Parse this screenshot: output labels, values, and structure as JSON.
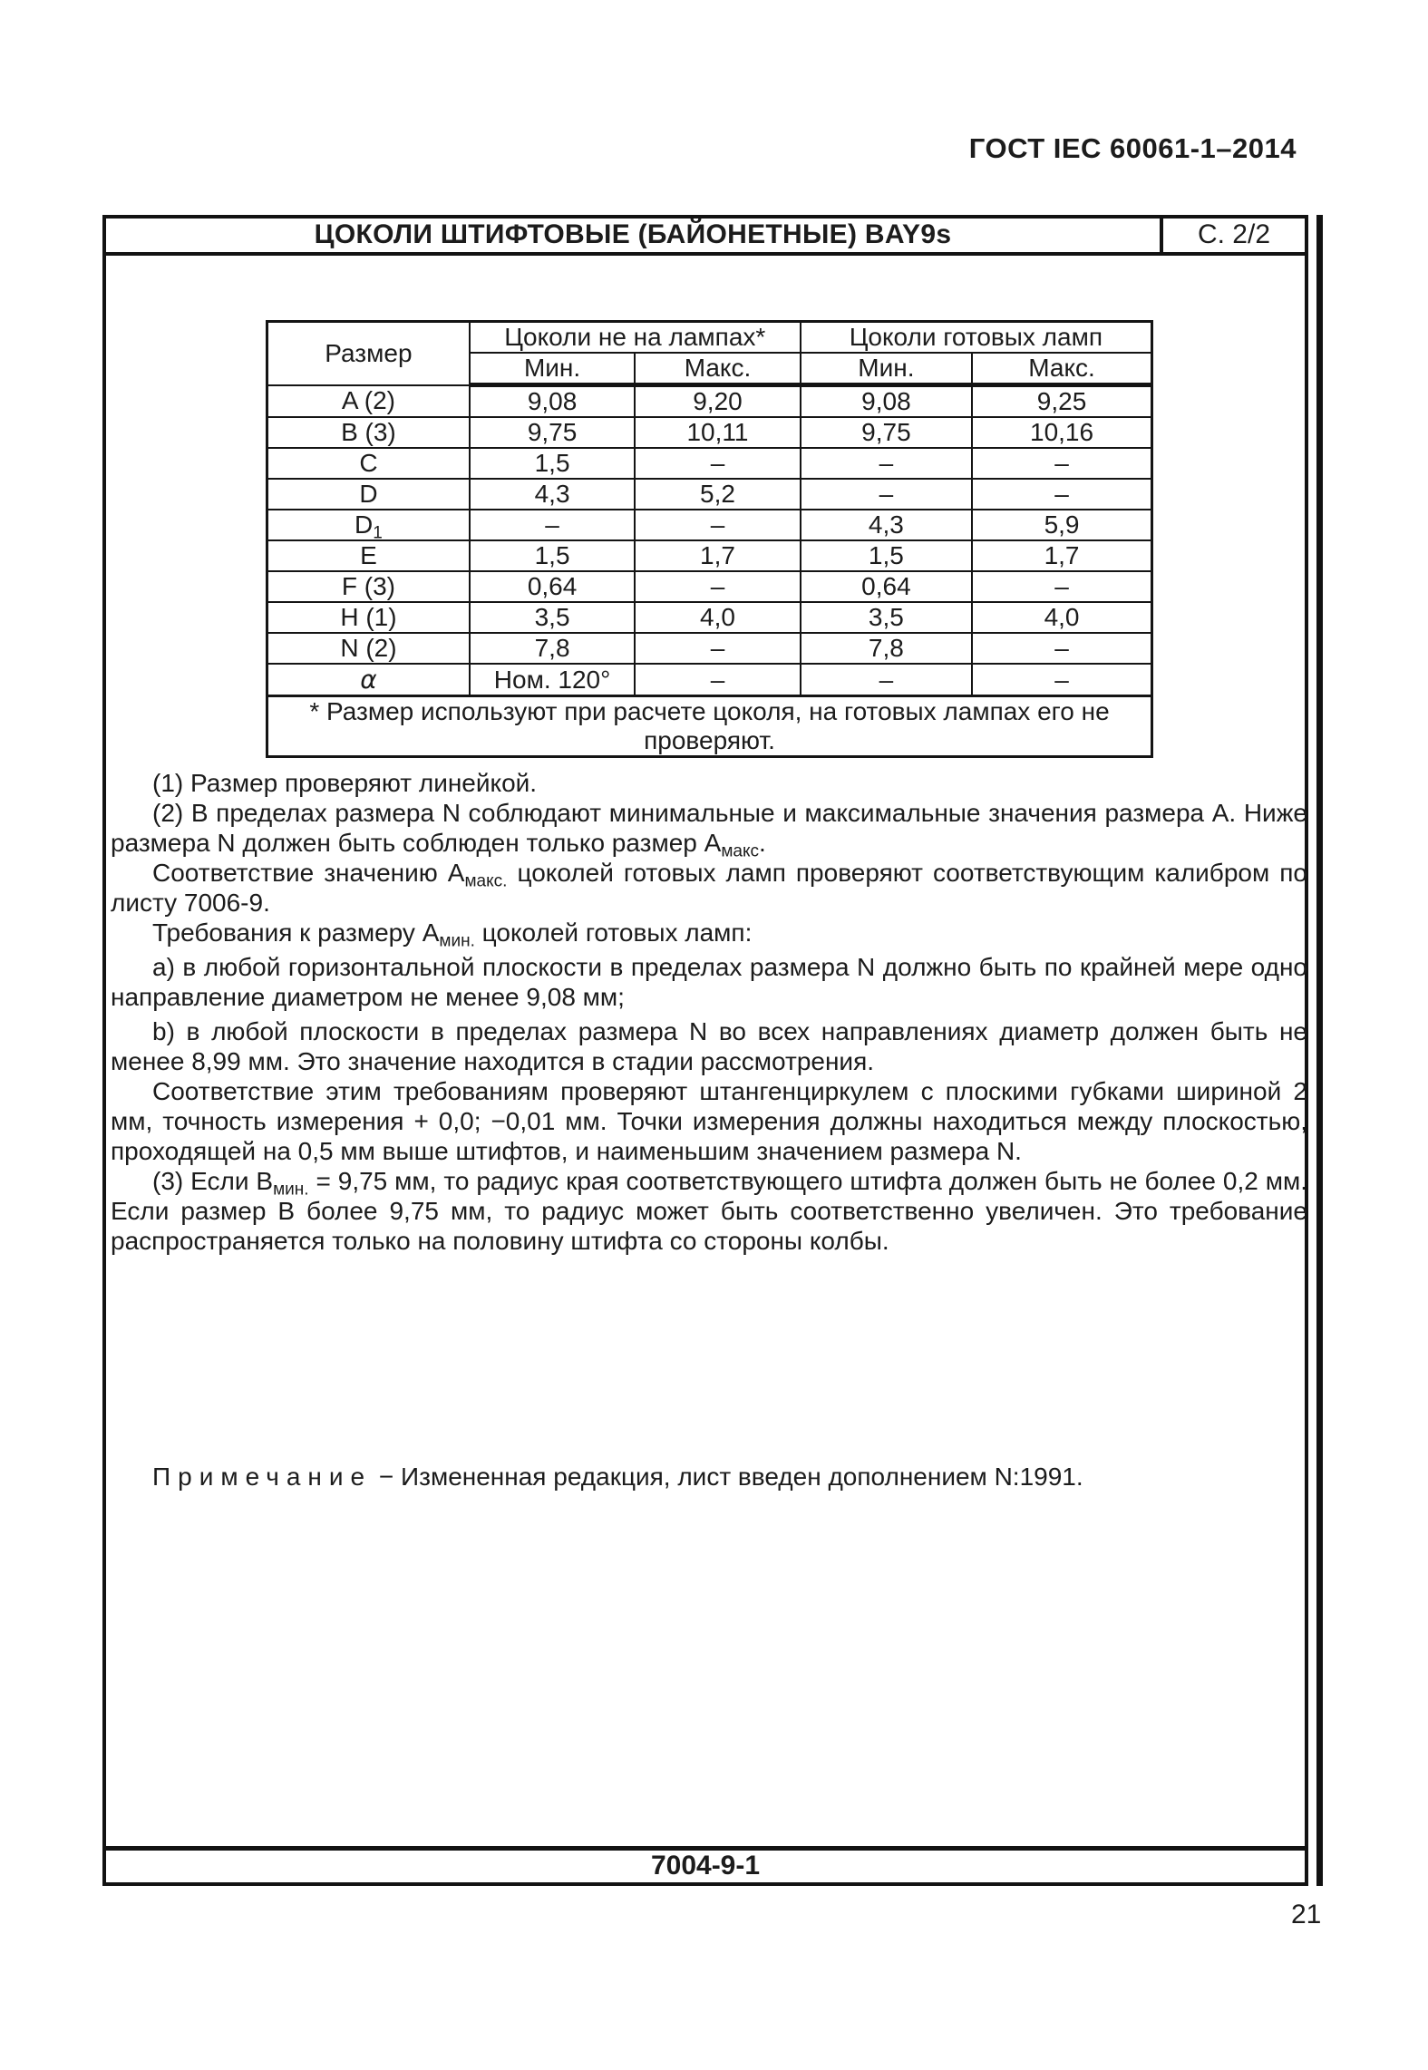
{
  "page": {
    "doc_header": "ГОСТ IEC 60061-1–2014",
    "sheet_code": "7004-9-1",
    "page_number": "21"
  },
  "sheet": {
    "title": "ЦОКОЛИ ШТИФТОВЫЕ (БАЙОНЕТНЫЕ) BAY9s",
    "page_ref": "С. 2/2"
  },
  "table": {
    "size_header": "Размер",
    "group1": "Цоколи не на лампах*",
    "group2": "Цоколи готовых ламп",
    "min_label": "Мин.",
    "max_label": "Макс.",
    "rows": [
      {
        "size": [
          {
            "t": "A (2)"
          }
        ],
        "values": [
          "9,08",
          "9,20",
          "9,08",
          "9,25"
        ]
      },
      {
        "size": [
          {
            "t": "B (3)"
          }
        ],
        "values": [
          "9,75",
          "10,11",
          "9,75",
          "10,16"
        ]
      },
      {
        "size": [
          {
            "t": "C"
          }
        ],
        "values": [
          "1,5",
          "–",
          "–",
          "–"
        ]
      },
      {
        "size": [
          {
            "t": "D"
          }
        ],
        "values": [
          "4,3",
          "5,2",
          "–",
          "–"
        ]
      },
      {
        "size": [
          {
            "t": "D"
          },
          {
            "t": "1",
            "sub": true
          }
        ],
        "values": [
          "–",
          "–",
          "4,3",
          "5,9"
        ]
      },
      {
        "size": [
          {
            "t": "E"
          }
        ],
        "values": [
          "1,5",
          "1,7",
          "1,5",
          "1,7"
        ]
      },
      {
        "size": [
          {
            "t": "F (3)"
          }
        ],
        "values": [
          "0,64",
          "–",
          "0,64",
          "–"
        ]
      },
      {
        "size": [
          {
            "t": "H (1)"
          }
        ],
        "values": [
          "3,5",
          "4,0",
          "3,5",
          "4,0"
        ]
      },
      {
        "size": [
          {
            "t": "N (2)"
          }
        ],
        "values": [
          "7,8",
          "–",
          "7,8",
          "–"
        ]
      },
      {
        "size": [
          {
            "t": "α",
            "alpha": true
          }
        ],
        "values": [
          "Ном. 120°",
          "–",
          "–",
          "–"
        ]
      }
    ],
    "footnote": "* Размер используют при расчете цоколя, на готовых лампах его не проверяют."
  },
  "body": {
    "paragraphs": [
      {
        "gap": false,
        "segments": [
          {
            "t": "(1) Размер проверяют линейкой."
          }
        ]
      },
      {
        "gap": false,
        "segments": [
          {
            "t": "(2) В пределах размера N соблюдают минимальные и максимальные значения размера A. Ниже размера N должен быть соблюден только размер A"
          },
          {
            "t": "макс",
            "sub": true
          },
          {
            "t": "."
          }
        ]
      },
      {
        "gap": false,
        "segments": [
          {
            "t": "Соответствие значению A"
          },
          {
            "t": "макс.",
            "sub": true
          },
          {
            "t": " цоколей готовых ламп проверяют соответствующим калибром по листу 7006-9."
          }
        ]
      },
      {
        "gap": false,
        "segments": [
          {
            "t": "Требования к размеру A"
          },
          {
            "t": "мин.",
            "sub": true
          },
          {
            "t": " цоколей готовых ламп:"
          }
        ]
      },
      {
        "gap": true,
        "segments": [
          {
            "t": "a) в любой горизонтальной плоскости в пределах размера N должно быть по крайней мере одно направление диаметром не менее 9,08 мм;"
          }
        ]
      },
      {
        "gap": true,
        "segments": [
          {
            "t": "b) в любой плоскости в пределах размера N во всех направлениях диаметр должен быть не менее 8,99 мм. Это значение находится в стадии рассмотрения."
          }
        ]
      },
      {
        "gap": false,
        "segments": [
          {
            "t": "Соответствие этим требованиям проверяют штангенциркулем с плоскими губками шириной 2 мм, точность измерения + 0,0; −0,01 мм. Точки измерения должны находиться между плоскостью, проходящей на 0,5 мм выше штифтов, и наименьшим значением размера N."
          }
        ]
      },
      {
        "gap": false,
        "segments": [
          {
            "t": "(3) Если B"
          },
          {
            "t": "мин.",
            "sub": true
          },
          {
            "t": " = 9,75 мм, то радиус края соответствующего штифта должен быть не более 0,2 мм. Если размер B более 9,75 мм, то радиус может быть соответственно увеличен. Это требование распространяется только на половину штифта со стороны колбы."
          }
        ]
      }
    ],
    "note_segments": [
      {
        "t": "Примечание",
        "spaced": true
      },
      {
        "t": " − Измененная редакция, лист введен дополнением N:1991."
      }
    ]
  }
}
